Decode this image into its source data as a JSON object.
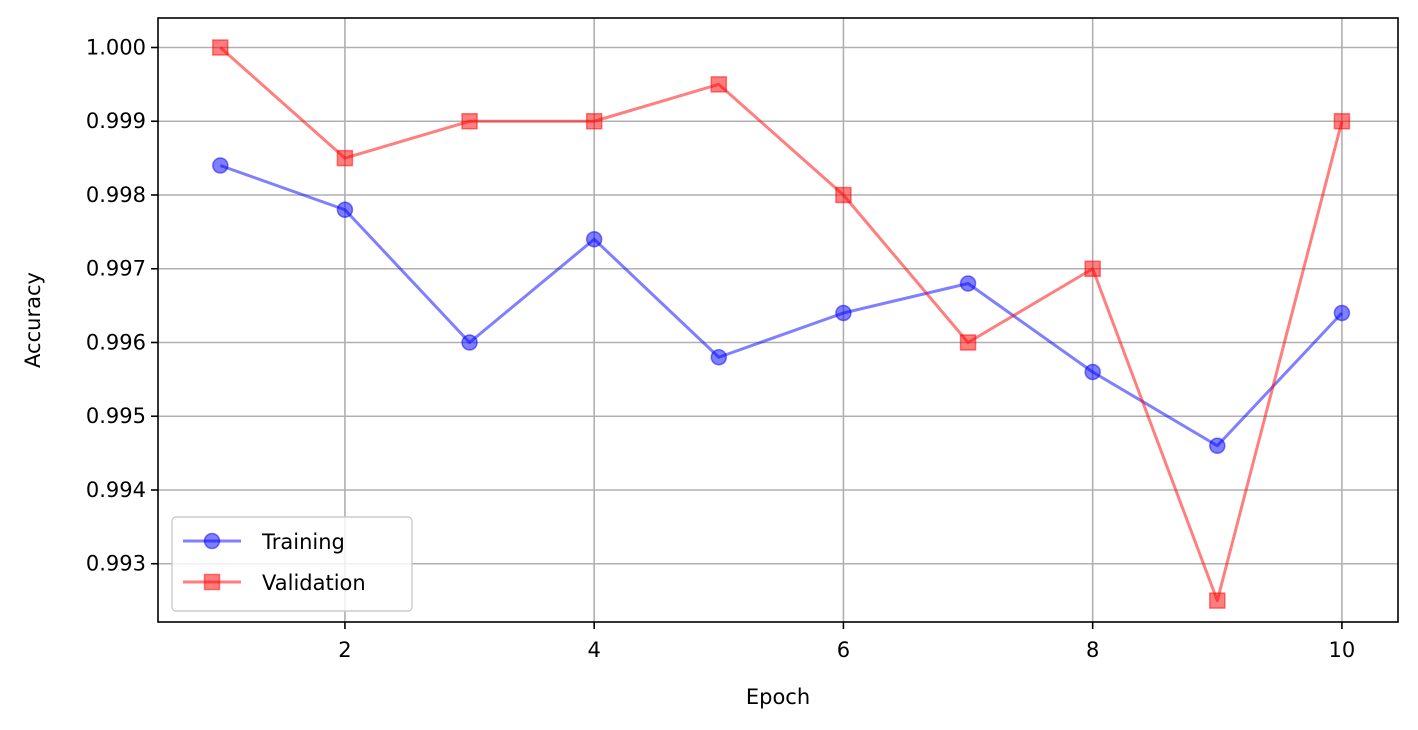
{
  "chart_data": {
    "type": "line",
    "title": "",
    "xlabel": "Epoch",
    "ylabel": "Accuracy",
    "xlim": [
      0.5,
      10.45
    ],
    "ylim": [
      0.99221,
      1.0004
    ],
    "x": [
      1,
      2,
      3,
      4,
      5,
      6,
      7,
      8,
      9,
      10
    ],
    "xticks": [
      2,
      4,
      6,
      8,
      10
    ],
    "xtick_labels": [
      "2",
      "4",
      "6",
      "8",
      "10"
    ],
    "yticks": [
      0.993,
      0.994,
      0.995,
      0.996,
      0.997,
      0.998,
      0.999,
      1.0
    ],
    "ytick_labels": [
      "0.993",
      "0.994",
      "0.995",
      "0.996",
      "0.997",
      "0.998",
      "0.999",
      "1.000"
    ],
    "grid": true,
    "legend_position": "lower-left",
    "series": [
      {
        "name": "Training",
        "color": "#0000ff",
        "marker": "circle",
        "values": [
          0.9984,
          0.9978,
          0.996,
          0.9974,
          0.9958,
          0.9964,
          0.9968,
          0.9956,
          0.9946,
          0.9964
        ]
      },
      {
        "name": "Validation",
        "color": "#ff0000",
        "marker": "square",
        "values": [
          1.0,
          0.9985,
          0.999,
          0.999,
          0.9995,
          0.998,
          0.996,
          0.997,
          0.9925,
          0.999
        ]
      }
    ]
  }
}
